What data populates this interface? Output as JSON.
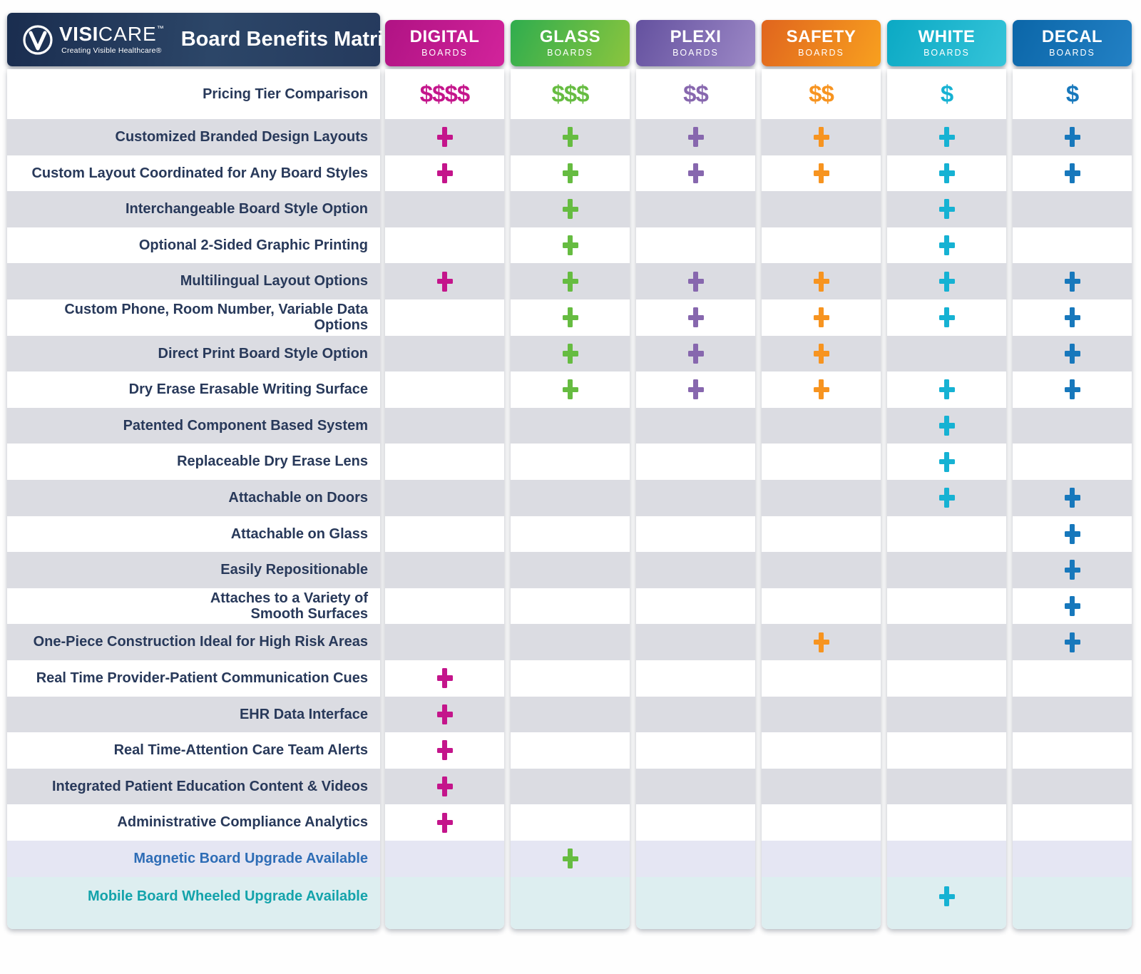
{
  "header": {
    "brand_bold": "VISI",
    "brand_light": "CARE",
    "brand_tm": "™",
    "tagline": "Creating Visible Healthcare®",
    "title": "Board Benefits Matrix",
    "bar_color": "#22395c"
  },
  "chart_data": {
    "type": "table",
    "title": "Board Benefits Matrix",
    "pricing_row_label": "Pricing Tier Comparison",
    "columns": [
      {
        "name": "DIGITAL",
        "sub": "BOARDS",
        "price": "$$$$",
        "accent": "#c4158b",
        "grad_from": "#b01384",
        "grad_to": "#d2239b"
      },
      {
        "name": "GLASS",
        "sub": "BOARDS",
        "price": "$$$",
        "accent": "#66bc41",
        "grad_from": "#2fad4e",
        "grad_to": "#8bc53e"
      },
      {
        "name": "PLEXI",
        "sub": "BOARDS",
        "price": "$$",
        "accent": "#8767ae",
        "grad_from": "#64519f",
        "grad_to": "#9c88c6"
      },
      {
        "name": "SAFETY",
        "sub": "BOARDS",
        "price": "$$",
        "accent": "#f79420",
        "grad_from": "#e0651e",
        "grad_to": "#f8a01f"
      },
      {
        "name": "WHITE",
        "sub": "BOARDS",
        "price": "$",
        "accent": "#16b2d3",
        "grad_from": "#0ba9c4",
        "grad_to": "#35c4d9"
      },
      {
        "name": "DECAL",
        "sub": "BOARDS",
        "price": "$",
        "accent": "#1778bc",
        "grad_from": "#0b66a8",
        "grad_to": "#2381c5"
      }
    ],
    "rows": [
      {
        "label": "Customized Branded Design Layouts",
        "cells": [
          1,
          1,
          1,
          1,
          1,
          1
        ]
      },
      {
        "label": "Custom Layout Coordinated for Any Board Styles",
        "cells": [
          1,
          1,
          1,
          1,
          1,
          1
        ]
      },
      {
        "label": "Interchangeable Board Style Option",
        "cells": [
          0,
          1,
          0,
          0,
          1,
          0
        ]
      },
      {
        "label": "Optional 2-Sided Graphic Printing",
        "cells": [
          0,
          1,
          0,
          0,
          1,
          0
        ]
      },
      {
        "label": "Multilingual Layout Options",
        "cells": [
          1,
          1,
          1,
          1,
          1,
          1
        ]
      },
      {
        "label": "Custom Phone, Room Number, Variable Data Options",
        "cells": [
          0,
          1,
          1,
          1,
          1,
          1
        ]
      },
      {
        "label": "Direct Print Board Style Option",
        "cells": [
          0,
          1,
          1,
          1,
          0,
          1
        ]
      },
      {
        "label": "Dry Erase Erasable Writing Surface",
        "cells": [
          0,
          1,
          1,
          1,
          1,
          1
        ]
      },
      {
        "label": "Patented Component Based System",
        "cells": [
          0,
          0,
          0,
          0,
          1,
          0
        ]
      },
      {
        "label": "Replaceable Dry Erase Lens",
        "cells": [
          0,
          0,
          0,
          0,
          1,
          0
        ]
      },
      {
        "label": "Attachable on Doors",
        "cells": [
          0,
          0,
          0,
          0,
          1,
          1
        ]
      },
      {
        "label": "Attachable on Glass",
        "cells": [
          0,
          0,
          0,
          0,
          0,
          1
        ]
      },
      {
        "label": "Easily Repositionable",
        "cells": [
          0,
          0,
          0,
          0,
          0,
          1
        ]
      },
      {
        "label": "Attaches to a Variety of\nSmooth Surfaces",
        "cells": [
          0,
          0,
          0,
          0,
          0,
          1
        ]
      },
      {
        "label": "One-Piece Construction Ideal for High Risk Areas",
        "cells": [
          0,
          0,
          0,
          1,
          0,
          1
        ]
      },
      {
        "label": "Real Time Provider-Patient Communication Cues",
        "cells": [
          1,
          0,
          0,
          0,
          0,
          0
        ]
      },
      {
        "label": "EHR Data Interface",
        "cells": [
          1,
          0,
          0,
          0,
          0,
          0
        ]
      },
      {
        "label": "Real Time-Attention Care Team Alerts",
        "cells": [
          1,
          0,
          0,
          0,
          0,
          0
        ]
      },
      {
        "label": "Integrated Patient Education Content & Videos",
        "cells": [
          1,
          0,
          0,
          0,
          0,
          0
        ]
      },
      {
        "label": "Administrative Compliance Analytics",
        "cells": [
          1,
          0,
          0,
          0,
          0,
          0
        ]
      }
    ],
    "special_rows": [
      {
        "label": "Magnetic Board Upgrade Available",
        "cells": [
          0,
          1,
          0,
          0,
          0,
          0
        ],
        "bg": "#e5e6f3",
        "text_color": "#2e6db6"
      },
      {
        "label": "Mobile Board Wheeled Upgrade Available",
        "cells": [
          0,
          0,
          0,
          0,
          1,
          0
        ],
        "bg": "#ddeef0",
        "text_color": "#14a3ab"
      }
    ],
    "stripe_color": "#dbdce2",
    "row_label_color": "#28395a",
    "legend_position": "none",
    "grid": false
  }
}
